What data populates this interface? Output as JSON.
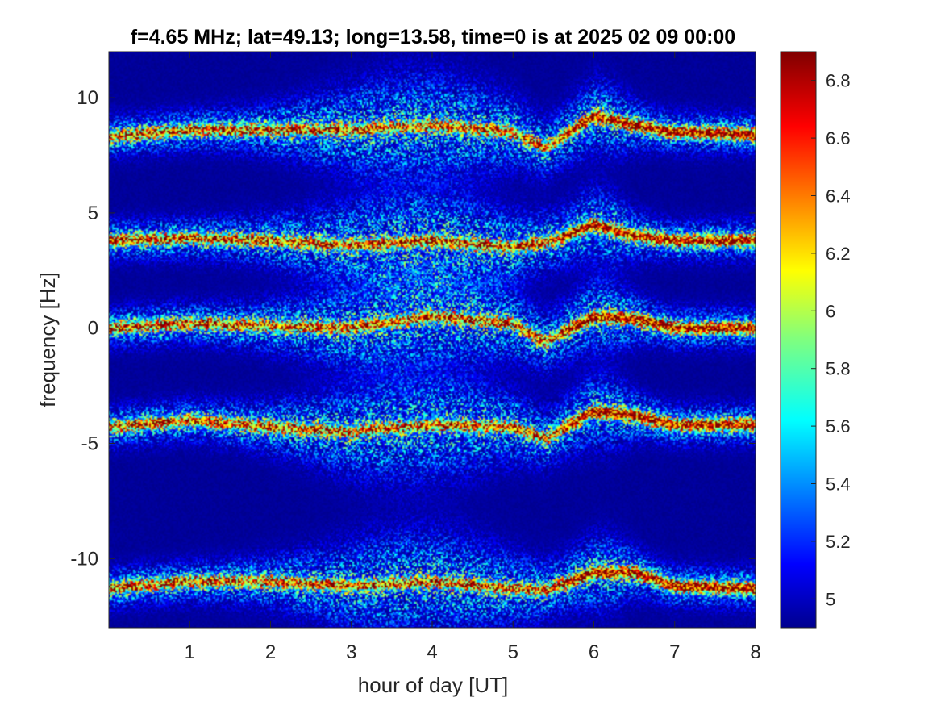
{
  "chart_data": {
    "type": "heatmap",
    "title": "f=4.65 MHz;  lat=49.13; long=13.58, time=0 is at 2025 02 09 00:00",
    "xlabel": "hour of day [UT]",
    "ylabel": "frequency [Hz]",
    "xlim": [
      0,
      8
    ],
    "ylim": [
      -13,
      12
    ],
    "xticks": [
      1,
      2,
      3,
      4,
      5,
      6,
      7,
      8
    ],
    "yticks": [
      -10,
      -5,
      0,
      5,
      10
    ],
    "colorbar": {
      "range": [
        4.9,
        6.9
      ],
      "ticks": [
        5,
        5.2,
        5.4,
        5.6,
        5.8,
        6,
        6.2,
        6.4,
        6.6,
        6.8
      ],
      "colormap": "jet"
    },
    "background_level": 4.95,
    "bands": [
      {
        "center_hz": 8.3,
        "trace": [
          [
            0,
            8.3
          ],
          [
            1,
            8.6
          ],
          [
            2,
            8.6
          ],
          [
            3,
            8.6
          ],
          [
            4,
            8.8
          ],
          [
            5,
            8.5
          ],
          [
            5.4,
            7.8
          ],
          [
            6,
            9.2
          ],
          [
            6.5,
            8.8
          ],
          [
            7,
            8.5
          ],
          [
            8,
            8.4
          ]
        ]
      },
      {
        "center_hz": 3.8,
        "trace": [
          [
            0,
            3.8
          ],
          [
            1,
            3.9
          ],
          [
            2,
            3.8
          ],
          [
            3,
            3.6
          ],
          [
            4,
            3.8
          ],
          [
            5,
            3.5
          ],
          [
            5.5,
            3.8
          ],
          [
            6,
            4.5
          ],
          [
            6.5,
            4.0
          ],
          [
            7,
            3.8
          ],
          [
            8,
            3.8
          ]
        ]
      },
      {
        "center_hz": 0.0,
        "trace": [
          [
            0,
            0
          ],
          [
            1,
            0.2
          ],
          [
            2,
            0.1
          ],
          [
            3,
            0.0
          ],
          [
            4,
            0.5
          ],
          [
            5,
            0.2
          ],
          [
            5.4,
            -0.6
          ],
          [
            6,
            0.5
          ],
          [
            6.5,
            0.4
          ],
          [
            7,
            0.0
          ],
          [
            8,
            0.0
          ]
        ]
      },
      {
        "center_hz": -4.3,
        "trace": [
          [
            0,
            -4.3
          ],
          [
            1,
            -4.0
          ],
          [
            2,
            -4.3
          ],
          [
            3,
            -4.5
          ],
          [
            4,
            -4.2
          ],
          [
            5,
            -4.3
          ],
          [
            5.4,
            -4.8
          ],
          [
            6,
            -3.6
          ],
          [
            6.5,
            -3.8
          ],
          [
            7,
            -4.2
          ],
          [
            8,
            -4.2
          ]
        ]
      },
      {
        "center_hz": -11.3,
        "trace": [
          [
            0,
            -11.3
          ],
          [
            1,
            -11.0
          ],
          [
            2,
            -11.0
          ],
          [
            3,
            -11.2
          ],
          [
            4,
            -11.0
          ],
          [
            5,
            -11.3
          ],
          [
            5.4,
            -11.4
          ],
          [
            6,
            -10.6
          ],
          [
            6.5,
            -10.6
          ],
          [
            7,
            -11.2
          ],
          [
            8,
            -11.3
          ]
        ]
      }
    ]
  }
}
